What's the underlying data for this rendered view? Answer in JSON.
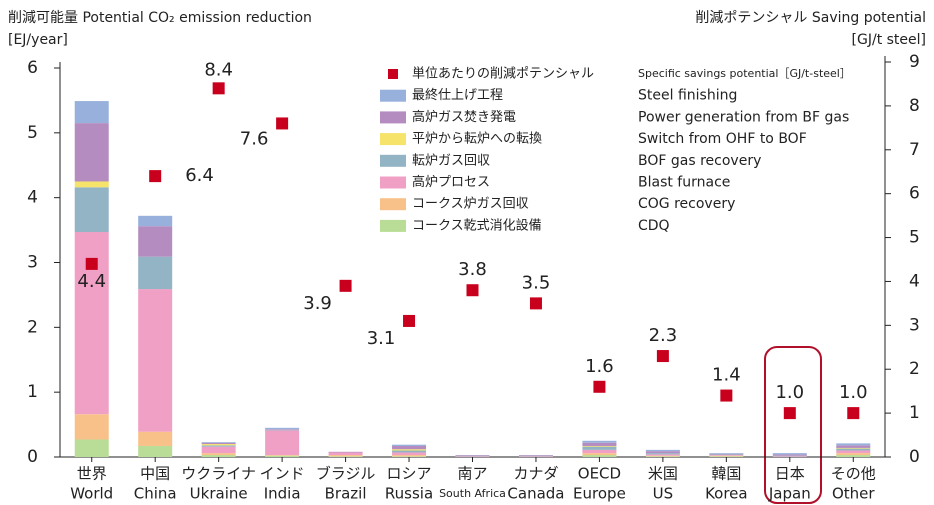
{
  "chart_data": {
    "type": "bar",
    "y_title": "削減可能量 Potential CO₂ emission reduction",
    "y_unit": "[EJ/year]",
    "y2_title": "削減ポテンシャル Saving potential",
    "y2_unit": "[GJ/t steel]",
    "categories": [
      [
        "世界",
        "World"
      ],
      [
        "中国",
        "China"
      ],
      [
        "ウクライナ",
        "Ukraine"
      ],
      [
        "インド",
        "India"
      ],
      [
        "ブラジル",
        "Brazil"
      ],
      [
        "ロシア",
        "Russia"
      ],
      [
        "南ア",
        "South Africa"
      ],
      [
        "カナダ",
        "Canada"
      ],
      [
        "OECD",
        "Europe"
      ],
      [
        "米国",
        "US"
      ],
      [
        "韓国",
        "Korea"
      ],
      [
        "日本",
        "Japan"
      ],
      [
        "その他",
        "Other"
      ]
    ],
    "ylim": [
      0,
      6
    ],
    "yticks": [
      0,
      1,
      2,
      3,
      4,
      5,
      6
    ],
    "y2lim": [
      0,
      9
    ],
    "y2ticks": [
      0,
      1,
      2,
      3,
      4,
      5,
      6,
      7,
      8,
      9
    ],
    "series": [
      {
        "name": "CDQ",
        "name_ja": "コークス乾式消化設備",
        "color": "#b9dc96",
        "values": [
          0.27,
          0.17,
          0.03,
          0.02,
          0.01,
          0.01,
          0.0,
          0.0,
          0.03,
          0.01,
          0.01,
          0.0,
          0.03
        ]
      },
      {
        "name": "COG recovery",
        "name_ja": "コークス炉ガス回収",
        "color": "#f8c18a",
        "values": [
          0.39,
          0.22,
          0.03,
          0.01,
          0.02,
          0.02,
          0.0,
          0.0,
          0.03,
          0.01,
          0.01,
          0.0,
          0.03
        ]
      },
      {
        "name": "Blast furnace",
        "name_ja": "高炉プロセス",
        "color": "#f0a0c4",
        "values": [
          2.81,
          2.2,
          0.1,
          0.38,
          0.04,
          0.04,
          0.01,
          0.01,
          0.05,
          0.02,
          0.01,
          0.01,
          0.04
        ]
      },
      {
        "name": "BOF gas recovery",
        "name_ja": "転炉ガス回収",
        "color": "#93b4c4",
        "values": [
          0.69,
          0.5,
          0.02,
          0.01,
          0.0,
          0.03,
          0.01,
          0.01,
          0.05,
          0.02,
          0.01,
          0.01,
          0.03
        ]
      },
      {
        "name": "Switch from OHF to BOF",
        "name_ja": "平炉から転炉への転換",
        "color": "#f5e36a",
        "values": [
          0.09,
          0.0,
          0.02,
          0.0,
          0.0,
          0.02,
          0.0,
          0.0,
          0.01,
          0.0,
          0.0,
          0.0,
          0.01
        ]
      },
      {
        "name": "Power generation from BF gas",
        "name_ja": "高炉ガス焚き発電",
        "color": "#b58cc0",
        "values": [
          0.9,
          0.47,
          0.02,
          0.01,
          0.01,
          0.05,
          0.01,
          0.01,
          0.05,
          0.03,
          0.01,
          0.02,
          0.04
        ]
      },
      {
        "name": "Steel finishing",
        "name_ja": "最終仕上げ工程",
        "color": "#97b1dc",
        "values": [
          0.34,
          0.16,
          0.01,
          0.02,
          0.0,
          0.02,
          0.0,
          0.0,
          0.03,
          0.02,
          0.01,
          0.02,
          0.03
        ]
      },
      {
        "name": "Specific savings potential［GJ/t-steel］",
        "name_ja": "単位あたりの削減ポテンシャル",
        "color": "#c8001e",
        "axis": "y2",
        "type": "scatter",
        "values": [
          4.4,
          6.4,
          8.4,
          7.6,
          3.9,
          3.1,
          3.8,
          3.5,
          1.6,
          2.3,
          1.4,
          1.0,
          1.0
        ],
        "value_labels": [
          "4.4",
          "6.4",
          "8.4",
          "7.6",
          "3.9",
          "3.1",
          "3.8",
          "3.5",
          "1.6",
          "2.3",
          "1.4",
          "1.0",
          "1.0"
        ]
      }
    ]
  }
}
